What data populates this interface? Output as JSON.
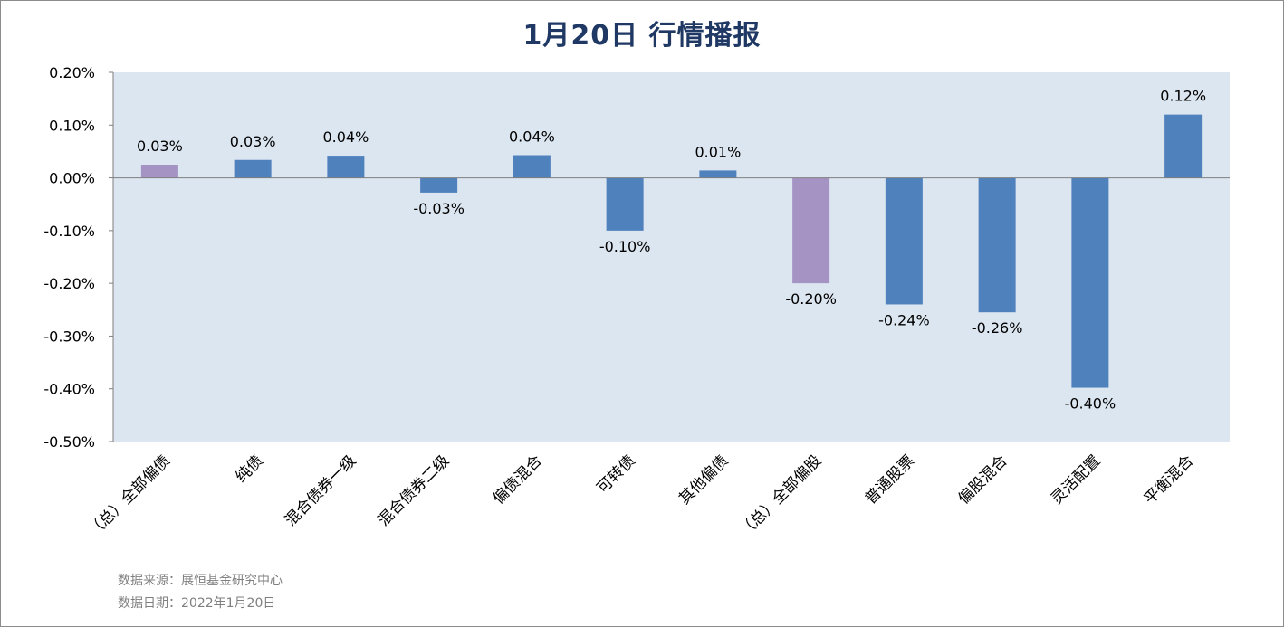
{
  "title": "1月20日  行情播报",
  "chart_data": {
    "type": "bar",
    "categories": [
      "（总）全部偏债",
      "纯债",
      "混合债券一级",
      "混合债券二级",
      "偏债混合",
      "可转债",
      "其他偏债",
      "（总）全部偏股",
      "普通股票",
      "偏股混合",
      "灵活配置",
      "平衡混合"
    ],
    "values": [
      0.025,
      0.034,
      0.042,
      -0.028,
      0.043,
      -0.1,
      0.014,
      -0.2,
      -0.24,
      -0.255,
      -0.398,
      0.12
    ],
    "data_labels": [
      "0.03%",
      "0.03%",
      "0.04%",
      "-0.03%",
      "0.04%",
      "-0.10%",
      "0.01%",
      "-0.20%",
      "-0.24%",
      "-0.26%",
      "-0.40%",
      "0.12%"
    ],
    "summary_categories": [
      "（总）全部偏债",
      "（总）全部偏股"
    ],
    "ylim": [
      -0.5,
      0.2
    ],
    "yticks": [
      0.2,
      0.1,
      0.0,
      -0.1,
      -0.2,
      -0.3,
      -0.4,
      -0.5
    ],
    "ytick_labels": [
      "0.20%",
      "0.10%",
      "0.00%",
      "-0.10%",
      "-0.20%",
      "-0.30%",
      "-0.40%",
      "-0.50%"
    ],
    "unit": "%",
    "grid": false,
    "colors": {
      "bar": "#4f81bd",
      "summary_bar": "#a493c3",
      "plot_bg": "#dce6f1"
    }
  },
  "footer": {
    "source": "数据来源：展恒基金研究中心",
    "date": "数据日期：2022年1月20日"
  }
}
